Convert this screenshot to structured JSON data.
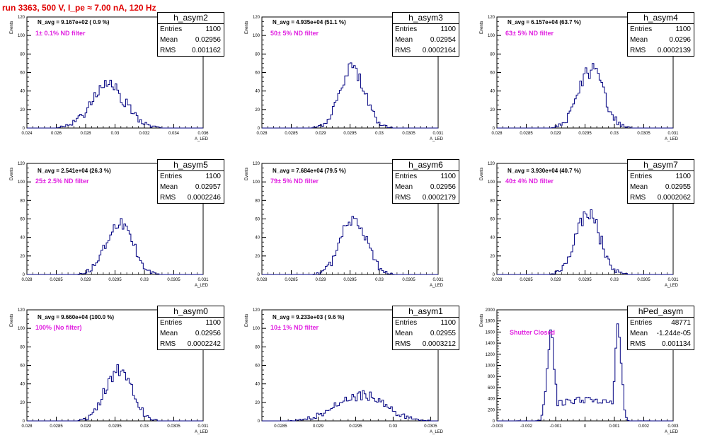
{
  "run_title": "run 3363,   500 V, I_pe ≈ 7.00 nA, 120 Hz",
  "colors": {
    "title": "#e00000",
    "filter_text": "#e020e0",
    "hist_line": "#000080"
  },
  "chart_data": [
    {
      "type": "histogram",
      "name": "h_asym2",
      "navg": "N_avg = 9.167e+02 ( 0.9 %)",
      "filter": "1± 0.1% ND filter",
      "stats": {
        "entries": "1100",
        "mean": "0.02956",
        "rms": "0.001162"
      },
      "xlim": [
        0.024,
        0.036
      ],
      "ylim": [
        0,
        120
      ],
      "xticks": [
        0.024,
        0.026,
        0.028,
        0.03,
        0.032,
        0.034,
        0.036
      ],
      "xticklabels": [
        "0.024",
        "0.026",
        "0.028",
        "0.03",
        "0.032",
        "0.034",
        "0.036"
      ],
      "yticks": [
        0,
        20,
        40,
        60,
        80,
        100,
        120
      ],
      "xlabel": "A_LED",
      "ylabel": "Events",
      "gauss": {
        "mean": 0.02956,
        "sigma": 0.00116,
        "peak": 45
      },
      "seed": 2
    },
    {
      "type": "histogram",
      "name": "h_asym3",
      "navg": "N_avg = 4.935e+04 (51.1 %)",
      "filter": "50± 5% ND filter",
      "stats": {
        "entries": "1100",
        "mean": "0.02954",
        "rms": "0.0002164"
      },
      "xlim": [
        0.028,
        0.031
      ],
      "ylim": [
        0,
        120
      ],
      "xticks": [
        0.028,
        0.0285,
        0.029,
        0.0295,
        0.03,
        0.0305,
        0.031
      ],
      "xticklabels": [
        "0.028",
        "0.0285",
        "0.029",
        "0.0295",
        "0.03",
        "0.0305",
        "0.031"
      ],
      "yticks": [
        0,
        20,
        40,
        60,
        80,
        100,
        120
      ],
      "xlabel": "A_LED",
      "ylabel": "Events",
      "gauss": {
        "mean": 0.02954,
        "sigma": 0.000216,
        "peak": 62
      },
      "seed": 3
    },
    {
      "type": "histogram",
      "name": "h_asym4",
      "navg": "N_avg = 6.157e+04 (63.7 %)",
      "filter": "63± 5% ND filter",
      "stats": {
        "entries": "1100",
        "mean": "0.0296",
        "rms": "0.0002139"
      },
      "xlim": [
        0.028,
        0.031
      ],
      "ylim": [
        0,
        120
      ],
      "xticks": [
        0.028,
        0.0285,
        0.029,
        0.0295,
        0.03,
        0.0305,
        0.031
      ],
      "xticklabels": [
        "0.028",
        "0.0285",
        "0.029",
        "0.0295",
        "0.03",
        "0.0305",
        "0.031"
      ],
      "yticks": [
        0,
        20,
        40,
        60,
        80,
        100,
        120
      ],
      "xlabel": "A_LED",
      "ylabel": "Events",
      "gauss": {
        "mean": 0.0296,
        "sigma": 0.000214,
        "peak": 62
      },
      "seed": 4
    },
    {
      "type": "histogram",
      "name": "h_asym5",
      "navg": "N_avg = 2.541e+04 (26.3 %)",
      "filter": "25± 2.5% ND filter",
      "stats": {
        "entries": "1100",
        "mean": "0.02957",
        "rms": "0.0002246"
      },
      "xlim": [
        0.028,
        0.031
      ],
      "ylim": [
        0,
        120
      ],
      "xticks": [
        0.028,
        0.0285,
        0.029,
        0.0295,
        0.03,
        0.0305,
        0.031
      ],
      "xticklabels": [
        "0.028",
        "0.0285",
        "0.029",
        "0.0295",
        "0.03",
        "0.0305",
        "0.031"
      ],
      "yticks": [
        0,
        20,
        40,
        60,
        80,
        100,
        120
      ],
      "xlabel": "A_LED",
      "ylabel": "Events",
      "gauss": {
        "mean": 0.02957,
        "sigma": 0.000225,
        "peak": 58
      },
      "seed": 5
    },
    {
      "type": "histogram",
      "name": "h_asym6",
      "navg": "N_avg = 7.684e+04 (79.5 %)",
      "filter": "79± 5% ND filter",
      "stats": {
        "entries": "1100",
        "mean": "0.02956",
        "rms": "0.0002179"
      },
      "xlim": [
        0.028,
        0.031
      ],
      "ylim": [
        0,
        120
      ],
      "xticks": [
        0.028,
        0.0285,
        0.029,
        0.0295,
        0.03,
        0.0305,
        0.031
      ],
      "xticklabels": [
        "0.028",
        "0.0285",
        "0.029",
        "0.0295",
        "0.03",
        "0.0305",
        "0.031"
      ],
      "yticks": [
        0,
        20,
        40,
        60,
        80,
        100,
        120
      ],
      "xlabel": "A_LED",
      "ylabel": "Events",
      "gauss": {
        "mean": 0.02956,
        "sigma": 0.000218,
        "peak": 60
      },
      "seed": 6
    },
    {
      "type": "histogram",
      "name": "h_asym7",
      "navg": "N_avg = 3.930e+04 (40.7 %)",
      "filter": "40± 4% ND filter",
      "stats": {
        "entries": "1100",
        "mean": "0.02955",
        "rms": "0.0002062"
      },
      "xlim": [
        0.028,
        0.031
      ],
      "ylim": [
        0,
        120
      ],
      "xticks": [
        0.028,
        0.0285,
        0.029,
        0.0295,
        0.03,
        0.0305,
        0.031
      ],
      "xticklabels": [
        "0.028",
        "0.0285",
        "0.029",
        "0.0295",
        "0.03",
        "0.0305",
        "0.031"
      ],
      "yticks": [
        0,
        20,
        40,
        60,
        80,
        100,
        120
      ],
      "xlabel": "A_LED",
      "ylabel": "Events",
      "gauss": {
        "mean": 0.02955,
        "sigma": 0.000206,
        "peak": 66
      },
      "seed": 7
    },
    {
      "type": "histogram",
      "name": "h_asym0",
      "navg": "N_avg = 9.660e+04 (100.0 %)",
      "filter": "100% (No filter)",
      "stats": {
        "entries": "1100",
        "mean": "0.02956",
        "rms": "0.0002242"
      },
      "xlim": [
        0.028,
        0.031
      ],
      "ylim": [
        0,
        120
      ],
      "xticks": [
        0.028,
        0.0285,
        0.029,
        0.0295,
        0.03,
        0.0305,
        0.031
      ],
      "xticklabels": [
        "0.028",
        "0.0285",
        "0.029",
        "0.0295",
        "0.03",
        "0.0305",
        "0.031"
      ],
      "yticks": [
        0,
        20,
        40,
        60,
        80,
        100,
        120
      ],
      "xlabel": "A_LED",
      "ylabel": "Events",
      "gauss": {
        "mean": 0.02956,
        "sigma": 0.000224,
        "peak": 56
      },
      "seed": 8
    },
    {
      "type": "histogram",
      "name": "h_asym1",
      "navg": "N_avg = 9.233e+03 ( 9.6 %)",
      "filter": "10± 1% ND filter",
      "stats": {
        "entries": "1100",
        "mean": "0.02955",
        "rms": "0.0003212"
      },
      "xlim": [
        0.02825,
        0.0306
      ],
      "ylim": [
        0,
        120
      ],
      "xticks": [
        0.0285,
        0.029,
        0.0295,
        0.03,
        0.0305
      ],
      "xticklabels": [
        "0.0285",
        "0.029",
        "0.0295",
        "0.03",
        "0.0305"
      ],
      "yticks": [
        0,
        20,
        40,
        60,
        80,
        100,
        120
      ],
      "xlabel": "A_LED",
      "ylabel": "Events",
      "gauss": {
        "mean": 0.02955,
        "sigma": 0.00032,
        "peak": 28
      },
      "seed": 9
    },
    {
      "type": "histogram",
      "name": "hPed_asym",
      "navg": "",
      "filter": "Shutter Closed",
      "stats": {
        "entries": "48771",
        "mean": "-1.244e-05",
        "rms": "0.001134"
      },
      "xlim": [
        -0.003,
        0.003
      ],
      "ylim": [
        0,
        2000
      ],
      "xticks": [
        -0.003,
        -0.002,
        -0.001,
        0,
        0.001,
        0.002,
        0.003
      ],
      "xticklabels": [
        "-0.003",
        "-0.002",
        "-0.001",
        "0",
        "0.001",
        "0.002",
        "0.003"
      ],
      "yticks": [
        0,
        200,
        400,
        600,
        800,
        1000,
        1200,
        1400,
        1600,
        1800,
        2000
      ],
      "xlabel": "A_LED",
      "ylabel": "Events",
      "bimodal": {
        "peaks": [
          [
            -0.00117,
            0.00013,
            1550
          ],
          [
            0.00113,
            0.00011,
            1700
          ]
        ],
        "floor": 380
      },
      "seed": 10
    }
  ]
}
